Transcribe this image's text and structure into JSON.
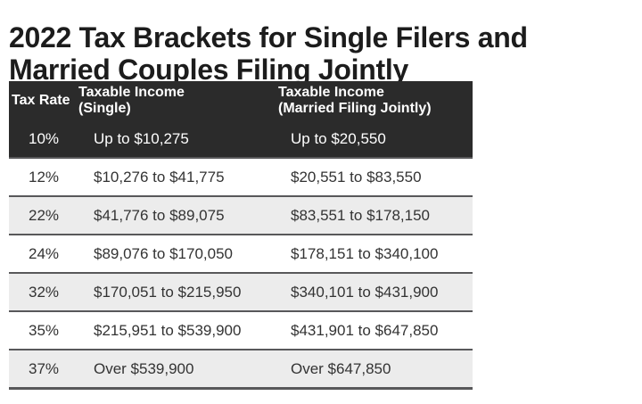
{
  "chart_data": {
    "type": "table",
    "title": "2022 Tax Brackets for Single Filers and Married Couples Filing Jointly",
    "title_line1": "2022 Tax Brackets for Single Filers and",
    "title_line2": "Married Couples Filing Jointly",
    "columns": [
      {
        "line1": "Tax Rate",
        "line2": ""
      },
      {
        "line1": "Taxable Income",
        "line2": "(Single)"
      },
      {
        "line1": "Taxable Income",
        "line2": "(Married Filing Jointly)"
      }
    ],
    "rows": [
      [
        "10%",
        "Up to $10,275",
        "Up to $20,550"
      ],
      [
        "12%",
        "$10,276 to $41,775",
        "$20,551 to $83,550"
      ],
      [
        "22%",
        "$41,776 to $89,075",
        "$83,551 to $178,150"
      ],
      [
        "24%",
        "$89,076 to $170,050",
        "$178,151 to $340,100"
      ],
      [
        "32%",
        "$170,051 to $215,950",
        "$340,101 to $431,900"
      ],
      [
        "35%",
        "$215,951 to $539,900",
        "$431,901 to $647,850"
      ],
      [
        "37%",
        "Over $539,900",
        "Over $647,850"
      ]
    ],
    "layout_hints": {
      "first_data_row_merged_with_header_block": true,
      "alternating_row_shading": true
    }
  },
  "colors": {
    "header_bg": "#2b2b2b",
    "header_text": "#ffffff",
    "alt_row_bg": "#ececec",
    "row_divider": "#58585a",
    "body_text": "#333333",
    "title_text": "#1c1c1c",
    "page_bg": "#ffffff"
  }
}
